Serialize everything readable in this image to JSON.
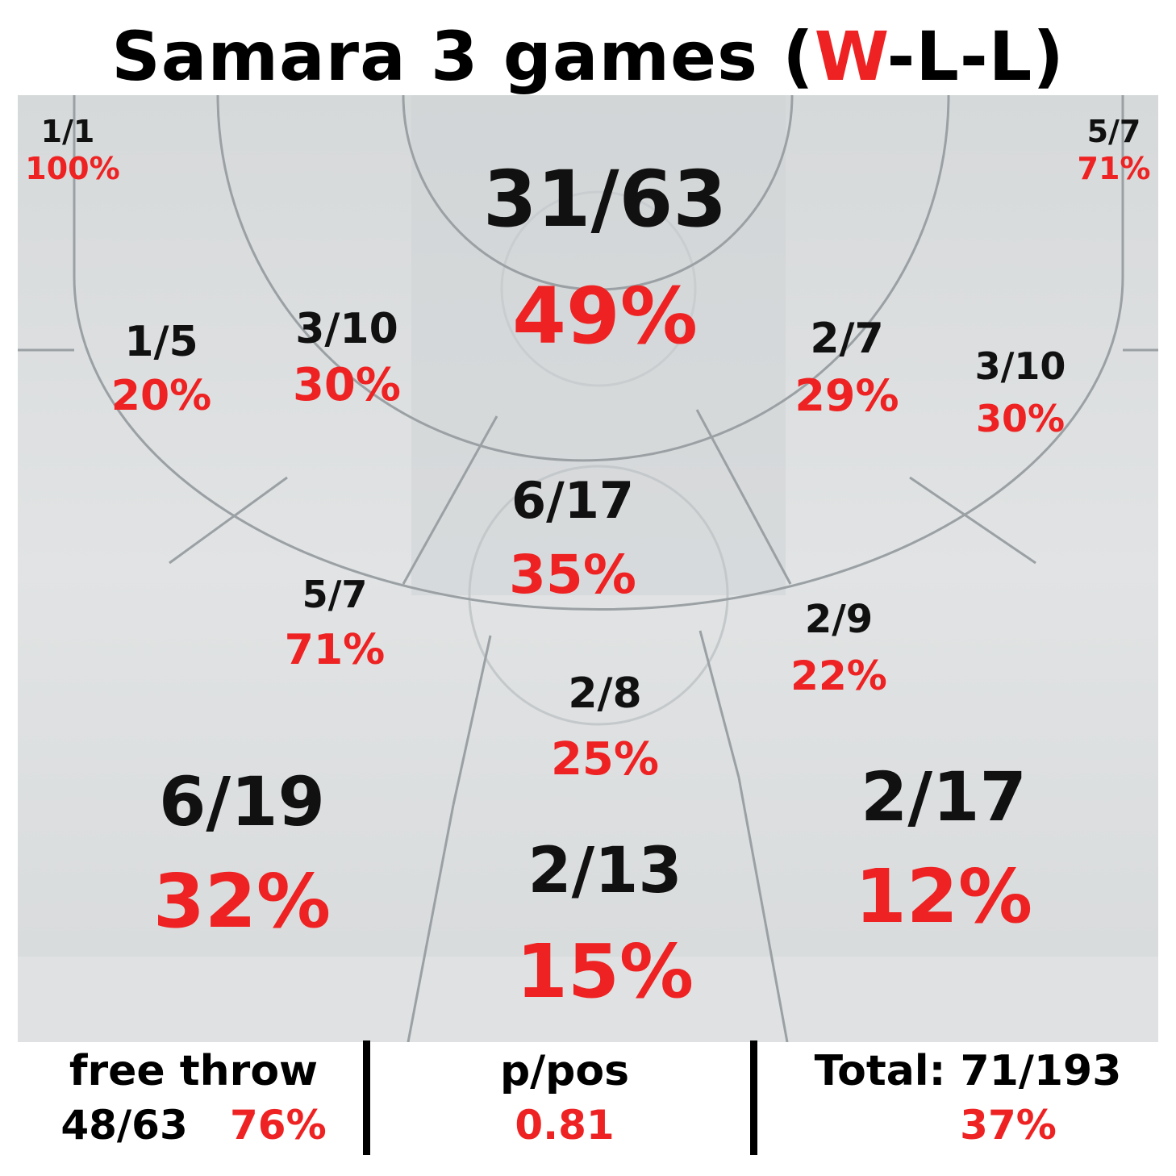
{
  "title": {
    "prefix": "Samara 3 games (",
    "win": "W",
    "suffix": "-L-L)"
  },
  "chart_data": {
    "type": "shot-chart",
    "zones": [
      {
        "id": "left-corner-three",
        "made_attempted": "1/1",
        "pct": "100%"
      },
      {
        "id": "right-corner-three",
        "made_attempted": "5/7",
        "pct": "71%"
      },
      {
        "id": "restricted-area",
        "made_attempted": "31/63",
        "pct": "49%"
      },
      {
        "id": "left-baseline-mid",
        "made_attempted": "1/5",
        "pct": "20%"
      },
      {
        "id": "left-short-mid",
        "made_attempted": "3/10",
        "pct": "30%"
      },
      {
        "id": "right-short-mid",
        "made_attempted": "2/7",
        "pct": "29%"
      },
      {
        "id": "right-baseline-mid",
        "made_attempted": "3/10",
        "pct": "30%"
      },
      {
        "id": "paint-non-ra",
        "made_attempted": "6/17",
        "pct": "35%"
      },
      {
        "id": "left-elbow-mid",
        "made_attempted": "5/7",
        "pct": "71%"
      },
      {
        "id": "right-elbow-mid",
        "made_attempted": "2/9",
        "pct": "22%"
      },
      {
        "id": "top-key-mid",
        "made_attempted": "2/8",
        "pct": "25%"
      },
      {
        "id": "left-wing-three",
        "made_attempted": "6/19",
        "pct": "32%"
      },
      {
        "id": "top-three",
        "made_attempted": "2/13",
        "pct": "15%"
      },
      {
        "id": "right-wing-three",
        "made_attempted": "2/17",
        "pct": "12%"
      }
    ]
  },
  "footer": {
    "free_throw": {
      "label": "free throw",
      "made_attempted": "48/63",
      "pct": "76%"
    },
    "ppos": {
      "label": "p/pos",
      "value": "0.81"
    },
    "total": {
      "label": "Total: 71/193",
      "pct": "37%"
    }
  },
  "colors": {
    "made": "#111111",
    "pct": "#ee2222",
    "court": "#d9dcdd",
    "lines": "#9aa0a3"
  }
}
